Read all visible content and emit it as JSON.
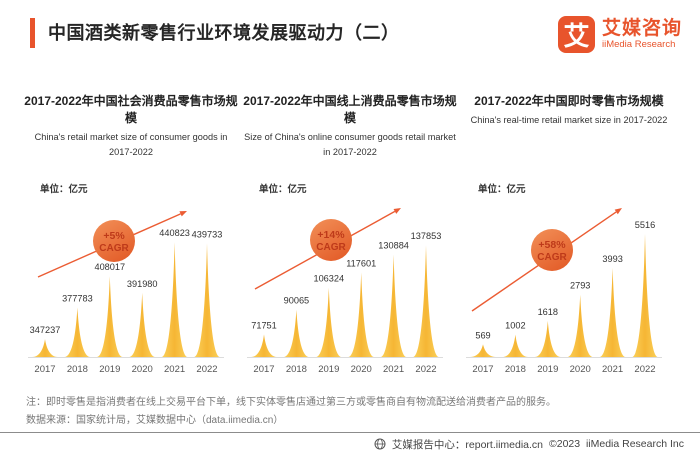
{
  "header": {
    "title": "中国酒类新零售行业环境发展驱动力（二）",
    "logo": {
      "mark": "艾",
      "name_cn": "艾媒咨询",
      "name_en": "iiMedia Research"
    }
  },
  "colors": {
    "accent": "#E8542C",
    "arrow": "#EB5C33",
    "badge_top": "#F29058",
    "badge_bottom": "#E4602C",
    "badge_text": "#BE3A1A",
    "peak_center": "#F6B634",
    "peak_edge": "#FAD15C",
    "baseline": "#DCDCDC",
    "value_label": "#333333",
    "year_label": "#555555"
  },
  "chart_data": [
    {
      "type": "bar",
      "title": "2017-2022年中国社会消费品零售市场规模",
      "subtitle_en": "China's retail market size of consumer goods in 2017-2022",
      "unit": "单位：亿元",
      "categories": [
        "2017",
        "2018",
        "2019",
        "2020",
        "2021",
        "2022"
      ],
      "values": [
        347237,
        377783,
        408017,
        391980,
        440823,
        439733
      ],
      "cagr": "+5%",
      "cagr_label": "CAGR",
      "ylim": [
        330000,
        441000
      ],
      "grid": false,
      "layout": {
        "max_peak_h": 115,
        "arrow": [
          [
            14,
            80
          ],
          [
            163,
            14
          ]
        ],
        "badge": [
          90,
          44
        ]
      }
    },
    {
      "type": "bar",
      "title": "2017-2022年中国线上消费品零售市场规模",
      "subtitle_en": "Size of China's online consumer goods retail market in 2017-2022",
      "unit": "单位：亿元",
      "categories": [
        "2017",
        "2018",
        "2019",
        "2020",
        "2021",
        "2022"
      ],
      "values": [
        71751,
        90065,
        106324,
        117601,
        130884,
        137853
      ],
      "cagr": "+14%",
      "cagr_label": "CAGR",
      "ylim": [
        55000,
        138000
      ],
      "grid": false,
      "layout": {
        "max_peak_h": 112,
        "arrow": [
          [
            12,
            92
          ],
          [
            158,
            11
          ]
        ],
        "badge": [
          88,
          43
        ]
      }
    },
    {
      "type": "bar",
      "title": "2017-2022年中国即时零售市场规模",
      "subtitle_en": "China's real-time retail market size in 2017-2022",
      "unit": "单位：亿元",
      "categories": [
        "2017",
        "2018",
        "2019",
        "2020",
        "2021",
        "2022"
      ],
      "values": [
        569,
        1002,
        1618,
        2793,
        3993,
        5516
      ],
      "cagr": "+58%",
      "cagr_label": "CAGR",
      "ylim": [
        0,
        5600
      ],
      "grid": false,
      "layout": {
        "max_peak_h": 125,
        "arrow": [
          [
            10,
            114
          ],
          [
            160,
            11
          ]
        ],
        "badge": [
          90,
          53
        ]
      }
    }
  ],
  "footer": {
    "note": "注：即时零售是指消费者在线上交易平台下单，线下实体零售店通过第三方或零售商自有物流配送给消费者产品的服务。",
    "source": "数据来源：国家统计局，艾媒数据中心（data.iimedia.cn）",
    "report_center": "艾媒报告中心：report.iimedia.cn",
    "copyright": "©2023  iiMedia Research Inc"
  }
}
